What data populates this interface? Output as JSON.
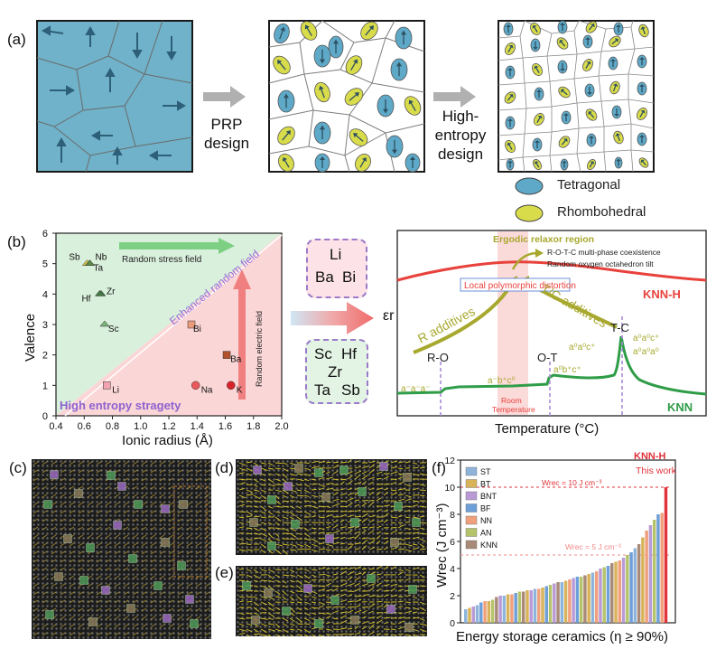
{
  "panels": {
    "a": "(a)",
    "b": "(b)",
    "c": "(c)",
    "d": "(d)",
    "e": "(e)",
    "f": "(f)"
  },
  "panel_a": {
    "arrow1_label": [
      "PRP",
      "design"
    ],
    "arrow2_label": [
      "High-",
      "entropy",
      "design"
    ],
    "legend": [
      {
        "label": "Tetragonal",
        "color": "#5fa9c8"
      },
      {
        "label": "Rhombohedral",
        "color": "#d9dc4a"
      }
    ]
  },
  "panel_b_scatter": {
    "y_title": "Valence",
    "x_title": "Ionic radius (Å)",
    "x_ticks": [
      "0.4",
      "0.6",
      "0.8",
      "1.0",
      "1.2",
      "1.4",
      "1.6",
      "1.8",
      "2.0"
    ],
    "y_ticks": [
      "0",
      "1",
      "2",
      "3",
      "4",
      "5",
      "6"
    ],
    "random_stress_field": "Random stress field",
    "enhanced_random_field": "Enhanced random field",
    "random_electric_field": "Random electric field",
    "high_entropy_strategy": "High entropy stragety",
    "elements": [
      {
        "name": "Sb",
        "r": 0.62,
        "v": 5
      },
      {
        "name": "Nb",
        "r": 0.64,
        "v": 5
      },
      {
        "name": "Ta",
        "r": 0.64,
        "v": 5
      },
      {
        "name": "Zr",
        "r": 0.72,
        "v": 4
      },
      {
        "name": "Hf",
        "r": 0.71,
        "v": 4
      },
      {
        "name": "Sc",
        "r": 0.745,
        "v": 3
      },
      {
        "name": "Bi",
        "r": 1.36,
        "v": 3
      },
      {
        "name": "Ba",
        "r": 1.61,
        "v": 2
      },
      {
        "name": "Li",
        "r": 0.76,
        "v": 1
      },
      {
        "name": "Na",
        "r": 1.39,
        "v": 1
      },
      {
        "name": "K",
        "r": 1.64,
        "v": 1
      }
    ]
  },
  "panel_b_boxes": {
    "top": [
      "Li",
      "Ba",
      "Bi"
    ],
    "bottom": [
      "Sc",
      "Hf",
      "Zr",
      "Ta",
      "Sb"
    ]
  },
  "panel_b_dielectric": {
    "ergodic_region": "Ergodic relaxor region",
    "note1": "R-O-T-C multi-phase coexistence",
    "note2": "Random oxygen octahedron tilt",
    "local_polymorphic": "Local polymorphic distortion",
    "knn_h": "KNN-H",
    "knn": "KNN",
    "t_c": "T-C",
    "r_o": "R-O",
    "o_t": "O-T",
    "r_additives": "R additives",
    "tc_additives": "T/C additives",
    "room_temperature": [
      "Room",
      "Temperature"
    ],
    "y_label": "εr",
    "x_label": "Temperature (°C)",
    "tilt_1": "a⁻a⁻a⁻",
    "tilt_2": "a⁻b⁺c⁰",
    "tilt_3": "a⁰b⁺c⁺",
    "tilt_4": "a⁰a⁰c⁺",
    "tilt_5": "a⁰a⁰c⁺",
    "tilt_6": "a⁰a⁰a⁰"
  },
  "chart_data": {
    "type": "bar",
    "title": "",
    "xlabel": "Energy storage ceramics (η ≥ 90%)",
    "ylabel": "Wrec (J cm⁻³)",
    "ylim": [
      0,
      12
    ],
    "y_ticks": [
      "0",
      "2",
      "4",
      "6",
      "8",
      "10",
      "12"
    ],
    "legend": [
      {
        "name": "ST",
        "color": "#8fb4dc"
      },
      {
        "name": "BT",
        "color": "#d9b35a"
      },
      {
        "name": "BNT",
        "color": "#b99ad6"
      },
      {
        "name": "BF",
        "color": "#6e9fd8"
      },
      {
        "name": "NN",
        "color": "#f0a07c"
      },
      {
        "name": "AN",
        "color": "#b5c46a"
      },
      {
        "name": "KNN",
        "color": "#a98a78"
      }
    ],
    "ref_10_label": "Wrec = 10 J cm⁻³",
    "ref_5_label": "Wrec = 5 J cm⁻³",
    "knn_h_label": "KNN-H",
    "this_work_label": "This work",
    "values": [
      1.0,
      1.1,
      1.2,
      1.3,
      1.5,
      1.6,
      1.6,
      1.7,
      1.9,
      2.0,
      2.0,
      2.1,
      2.1,
      2.2,
      2.3,
      2.3,
      2.4,
      2.4,
      2.5,
      2.5,
      2.6,
      2.7,
      2.8,
      2.9,
      3.0,
      3.0,
      3.1,
      3.2,
      3.3,
      3.4,
      3.4,
      3.5,
      3.6,
      3.7,
      3.8,
      4.0,
      4.1,
      4.2,
      4.4,
      4.5,
      4.6,
      4.8,
      5.0,
      5.2,
      5.5,
      5.8,
      6.3,
      6.8,
      7.2,
      7.6,
      8.0,
      8.1,
      10.0
    ],
    "series_codes": [
      0,
      1,
      2,
      0,
      3,
      4,
      1,
      5,
      6,
      2,
      0,
      1,
      4,
      3,
      5,
      6,
      1,
      2,
      0,
      4,
      1,
      3,
      5,
      2,
      6,
      0,
      1,
      4,
      2,
      3,
      5,
      6,
      1,
      0,
      4,
      2,
      5,
      3,
      6,
      1,
      4,
      2,
      5,
      3,
      0,
      6,
      1,
      4,
      2,
      5,
      3,
      4,
      7
    ],
    "highlight_color": "#e0333a"
  }
}
